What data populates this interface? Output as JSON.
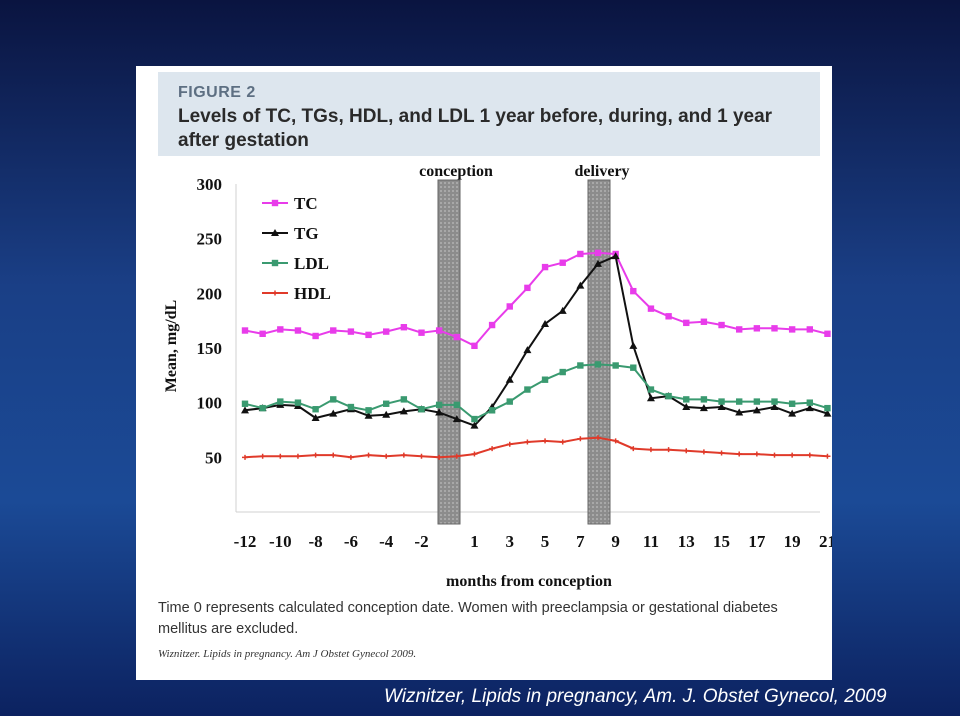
{
  "figure": {
    "label": "FIGURE 2",
    "title": "Levels of TC, TGs, HDL, and LDL 1 year before, during, and 1 year after gestation",
    "caption": "Time 0 represents calculated conception date. Women with preeclampsia or gestational diabetes mellitus are excluded.",
    "citation": "Wiznitzer. Lipids in pregnancy. Am J Obstet Gynecol 2009."
  },
  "footer": {
    "citation": "Wiznitzer, Lipids in pregnancy, Am. J. Obstet Gynecol, 2009"
  },
  "colors": {
    "TC": "#e83cea",
    "TG": "#111111",
    "LDL": "#3a9a70",
    "HDL": "#e03a2a",
    "band": "#8a8a8a"
  },
  "chart_data": {
    "type": "line",
    "title": "Levels of TC, TGs, HDL, and LDL 1 year before, during, and 1 year after gestation",
    "xlabel": "months from conception",
    "ylabel": "Mean, mg/dL",
    "ylim": [
      0,
      300
    ],
    "xlim": [
      -12,
      21
    ],
    "y_ticks": [
      50,
      100,
      150,
      200,
      250,
      300
    ],
    "x_ticks": [
      -12,
      -10,
      -8,
      -6,
      -4,
      -2,
      1,
      3,
      5,
      7,
      9,
      11,
      13,
      15,
      17,
      19,
      21
    ],
    "x": [
      -12,
      -11,
      -10,
      -9,
      -8,
      -7,
      -6,
      -5,
      -4,
      -3,
      -2,
      -1,
      0,
      1,
      2,
      3,
      4,
      5,
      6,
      7,
      8,
      9,
      10,
      11,
      12,
      13,
      14,
      15,
      16,
      17,
      18,
      19,
      20,
      21
    ],
    "series": [
      {
        "name": "TC",
        "marker": "square",
        "values": [
          166,
          163,
          167,
          166,
          161,
          166,
          165,
          162,
          165,
          169,
          164,
          166,
          160,
          152,
          171,
          188,
          205,
          224,
          228,
          236,
          237,
          236,
          202,
          186,
          179,
          173,
          174,
          171,
          167,
          168,
          168,
          167,
          167,
          163
        ]
      },
      {
        "name": "TG",
        "marker": "triangle",
        "values": [
          93,
          95,
          98,
          97,
          86,
          90,
          94,
          88,
          89,
          92,
          94,
          91,
          85,
          79,
          96,
          121,
          148,
          172,
          184,
          207,
          227,
          234,
          152,
          104,
          106,
          96,
          95,
          96,
          91,
          93,
          96,
          90,
          95,
          90
        ]
      },
      {
        "name": "LDL",
        "marker": "square",
        "values": [
          99,
          95,
          101,
          100,
          94,
          103,
          96,
          93,
          99,
          103,
          94,
          98,
          98,
          85,
          93,
          101,
          112,
          121,
          128,
          134,
          135,
          134,
          132,
          112,
          106,
          103,
          103,
          101,
          101,
          101,
          101,
          99,
          100,
          95
        ]
      },
      {
        "name": "HDL",
        "marker": "cross",
        "values": [
          50,
          51,
          51,
          51,
          52,
          52,
          50,
          52,
          51,
          52,
          51,
          50,
          51,
          53,
          58,
          62,
          64,
          65,
          64,
          67,
          68,
          65,
          58,
          57,
          57,
          56,
          55,
          54,
          53,
          53,
          52,
          52,
          52,
          51
        ]
      }
    ],
    "legend": [
      "TC",
      "TG",
      "LDL",
      "HDL"
    ],
    "legend_position": "top-left",
    "annotations": [
      {
        "label": "conception",
        "at": 0
      },
      {
        "label": "delivery",
        "at": 9
      }
    ]
  }
}
